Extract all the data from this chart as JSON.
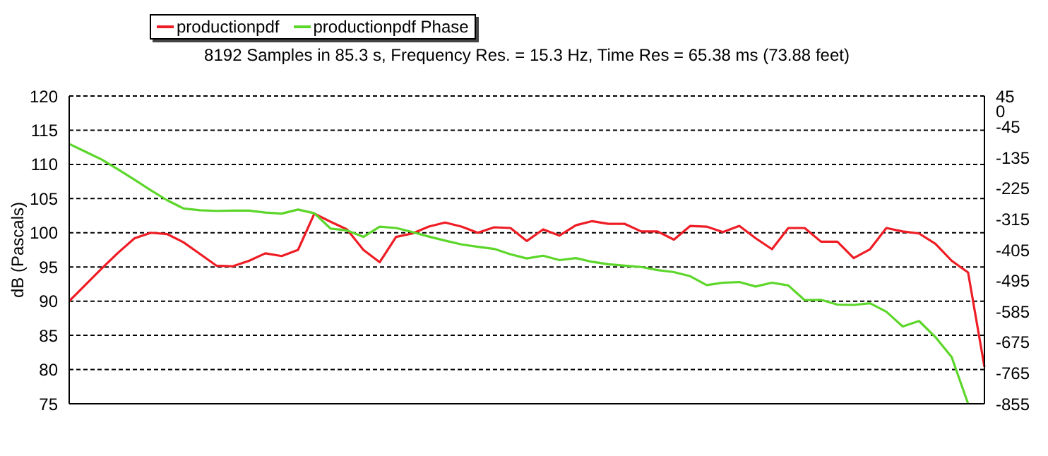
{
  "chart_data": {
    "type": "line",
    "title": "8192 Samples in 85.3 s, Frequency Res. = 15.3 Hz, Time Res = 65.38 ms (73.88 feet)",
    "ylabel": "dB (Pascals)",
    "grid": "y",
    "legend": "top",
    "marker": "none",
    "line_style": "solid",
    "categories": [
      null,
      null,
      null,
      null,
      null,
      null,
      null,
      null,
      null,
      null,
      null,
      null,
      null,
      null,
      null,
      null,
      null,
      null,
      null,
      null,
      null,
      null,
      null,
      null,
      null,
      null,
      null,
      null,
      null,
      null,
      null,
      null,
      null,
      null,
      null,
      null,
      null,
      null,
      null,
      null,
      null,
      null,
      null,
      null,
      null,
      null,
      null,
      null,
      null,
      null,
      null,
      null,
      null,
      null,
      null,
      null,
      null
    ],
    "ylim": [
      75,
      120
    ],
    "yticks": [
      75,
      80,
      85,
      90,
      95,
      100,
      105,
      110,
      115,
      120
    ],
    "y2lim": [
      -855,
      45
    ],
    "y2ticks": [
      45,
      0,
      -45,
      -135,
      -225,
      -315,
      -405,
      -495,
      -585,
      -675,
      -765,
      -855
    ],
    "series": [
      {
        "name": "productionpdf",
        "color": "#ee1c24",
        "values": [
          90,
          92.4,
          94.8,
          97.1,
          99.2,
          100,
          99.8,
          98.6,
          96.9,
          95.2,
          95.1,
          95.9,
          97,
          96.6,
          97.5,
          102.8,
          101.6,
          100.5,
          97.5,
          95.7,
          99.4,
          99.9,
          100.9,
          101.5,
          100.9,
          100,
          100.8,
          100.7,
          98.8,
          100.5,
          99.6,
          101.1,
          101.7,
          101.3,
          101.3,
          100.2,
          100.2,
          99,
          101,
          100.9,
          100.1,
          101,
          99.2,
          97.6,
          100.7,
          100.7,
          98.7,
          98.7,
          96.3,
          97.6,
          100.7,
          100.2,
          99.9,
          98.4,
          95.9,
          94.2,
          80.4
        ]
      },
      {
        "name": "productionpdf Phase",
        "color": "#5cd62a",
        "axis": "y2",
        "values": [
          -95,
          -118,
          -141,
          -170,
          -200,
          -231,
          -260,
          -284,
          -289,
          -291,
          -290,
          -290,
          -296,
          -299,
          -287,
          -298,
          -343,
          -348,
          -367,
          -337,
          -341,
          -353,
          -366,
          -378,
          -389,
          -396,
          -402,
          -418,
          -430,
          -422,
          -435,
          -429,
          -440,
          -447,
          -451,
          -455,
          -464,
          -470,
          -482,
          -508,
          -501,
          -499,
          -512,
          -501,
          -509,
          -552,
          -551,
          -565,
          -566,
          -561,
          -586,
          -629,
          -613,
          -660,
          -719,
          -855,
          null
        ]
      }
    ]
  }
}
